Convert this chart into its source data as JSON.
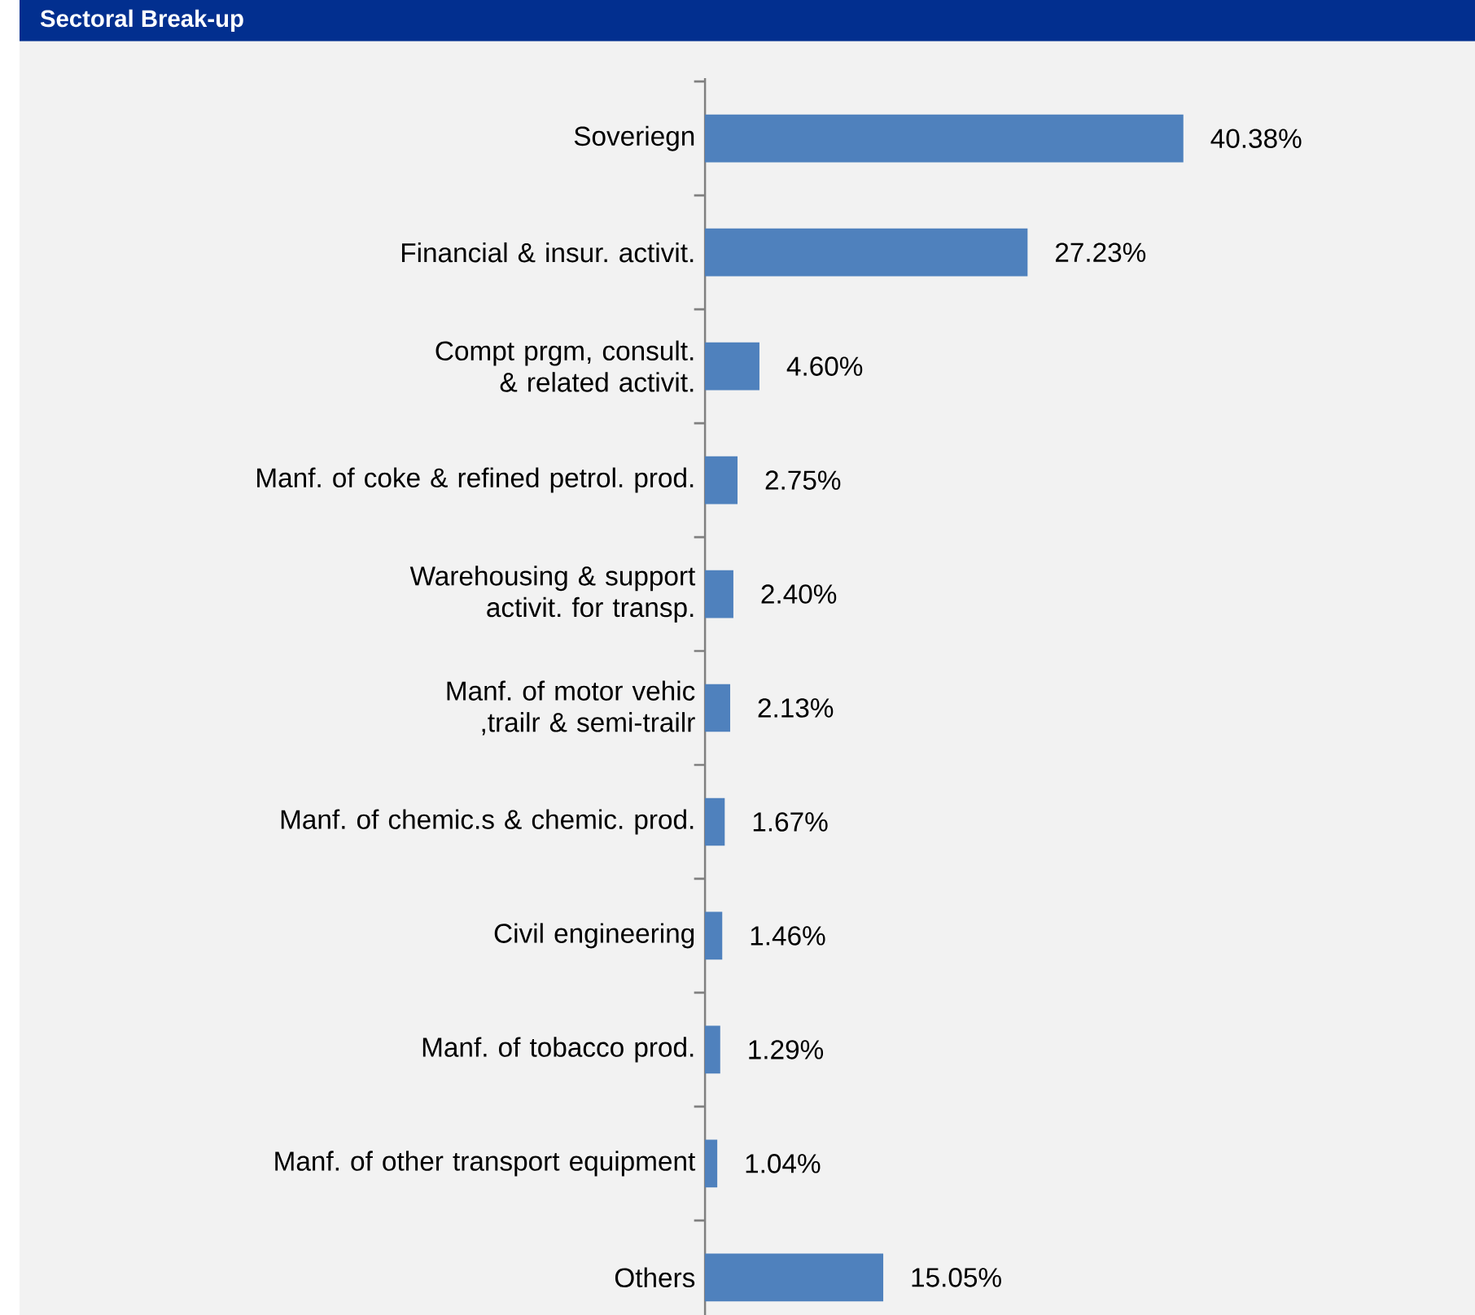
{
  "chart_data": {
    "type": "bar",
    "orientation": "horizontal",
    "title": "Sectoral Break-up",
    "categories": [
      "Soveriegn",
      "Financial & insur. activit.",
      "Compt prgm, consult. & related activit.",
      "Manf. of coke & refined petrol. prod.",
      "Warehousing & support activit. for transp.",
      "Manf. of motor vehic ,trailr & semi-trailr",
      "Manf. of chemic.s & chemic. prod.",
      "Civil engineering",
      "Manf. of tobacco prod.",
      "Manf. of other transport equipment",
      "Others"
    ],
    "values": [
      40.38,
      27.23,
      4.6,
      2.75,
      2.4,
      2.13,
      1.67,
      1.46,
      1.29,
      1.04,
      15.05
    ],
    "value_labels": [
      "40.38%",
      "27.23%",
      "4.60%",
      "2.75%",
      "2.40%",
      "2.13%",
      "1.67%",
      "1.46%",
      "1.29%",
      "1.04%",
      "15.05%"
    ],
    "color": "#4f81bd"
  }
}
